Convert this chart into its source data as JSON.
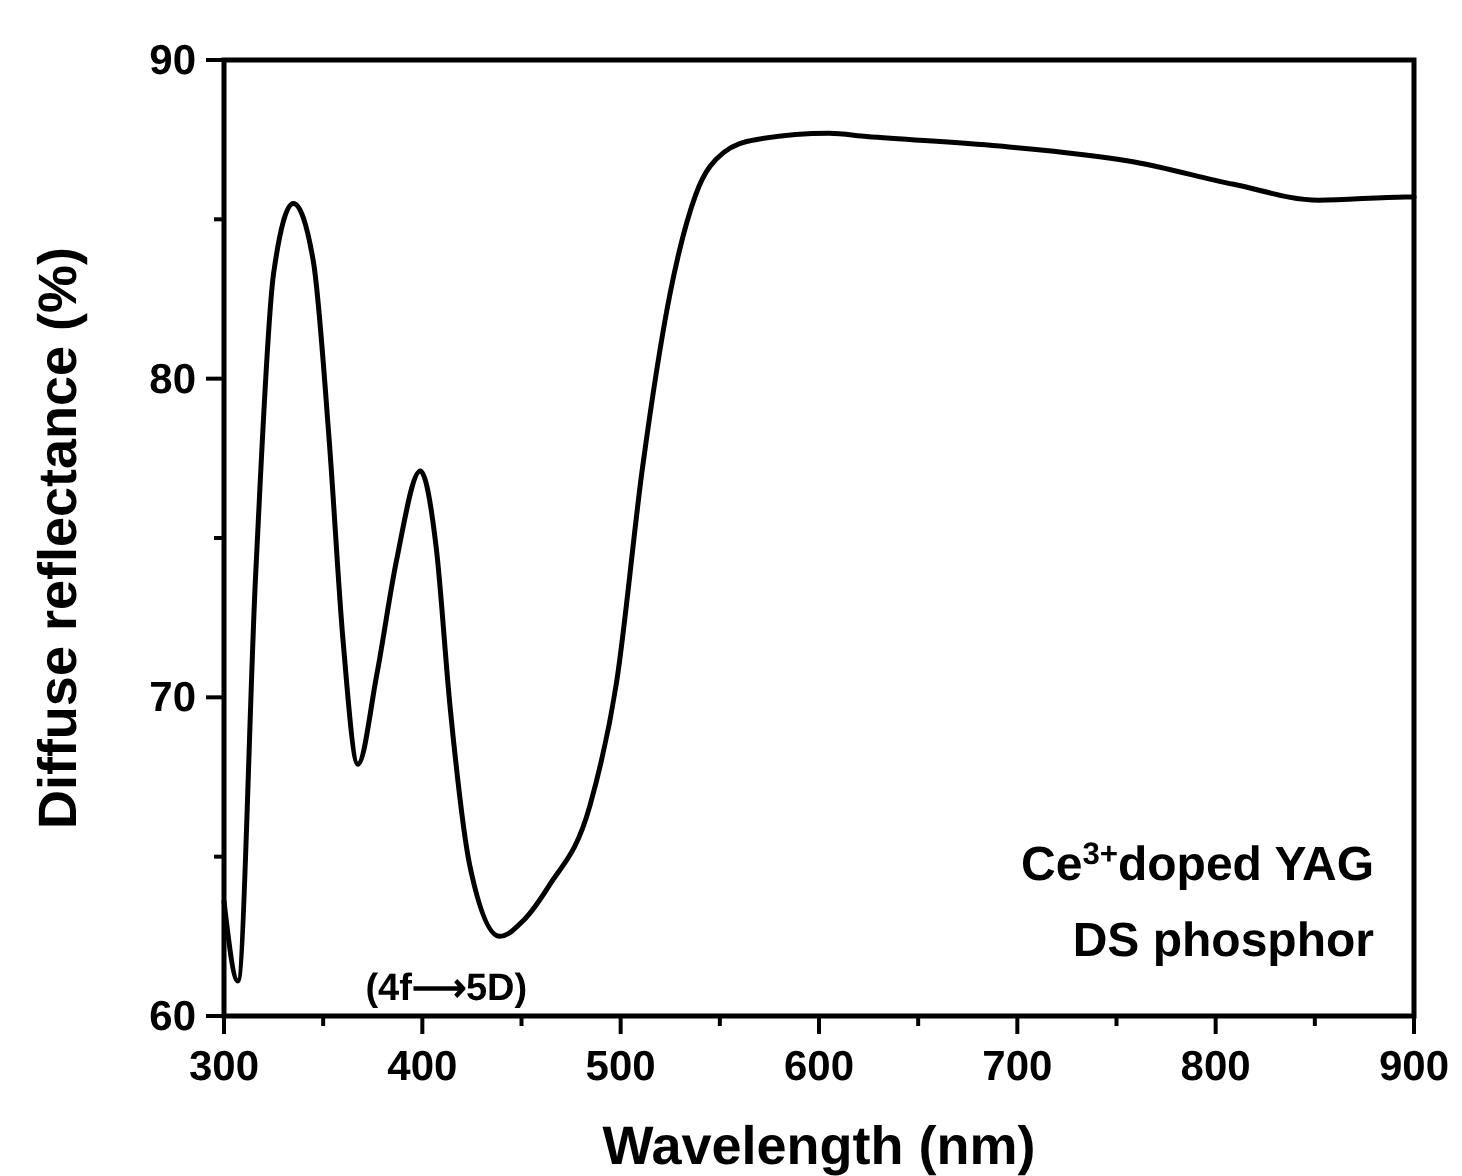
{
  "chart_data": {
    "type": "line",
    "xlabel": "Wavelength (nm)",
    "ylabel": "Diffuse reflectance (%)",
    "xlim": [
      300,
      900
    ],
    "ylim": [
      60,
      90
    ],
    "xticks": [
      300,
      {
        "value": 350,
        "label": null
      },
      400,
      {
        "value": 450,
        "label": null
      },
      500,
      {
        "value": 550,
        "label": null
      },
      600,
      {
        "value": 650,
        "label": null
      },
      700,
      {
        "value": 750,
        "label": null
      },
      800,
      {
        "value": 850,
        "label": null
      },
      900
    ],
    "yticks": [
      60,
      {
        "value": 65,
        "label": null
      },
      70,
      {
        "value": 75,
        "label": null
      },
      80,
      {
        "value": 85,
        "label": null
      },
      90
    ],
    "grid": false,
    "line_style": "solid",
    "annotations": [
      "(4f⟶5D)",
      "Ce$^{3+}$doped YAG",
      "DS phosphor"
    ],
    "series": [
      {
        "color": "#000000",
        "x": [
          300,
          307,
          316,
          325,
          335,
          345,
          353,
          360,
          367.5,
          377,
          387,
          399,
          407,
          414,
          424,
          439,
          451,
          464,
          484.5,
          498,
          511,
          525,
          538,
          552,
          568,
          605,
          624,
          691,
          759,
          809,
          852,
          896,
          900
        ],
        "values": [
          63.6,
          61.1,
          73.9,
          83.3,
          85.5,
          83.7,
          78.1,
          71.8,
          67.9,
          70.7,
          74.3,
          77.1,
          74.7,
          69.7,
          64.7,
          62.5,
          63.0,
          64.1,
          66.6,
          70.5,
          77.2,
          82.7,
          85.8,
          87.1,
          87.5,
          87.7,
          87.6,
          87.3,
          86.8,
          86.1,
          85.6,
          85.7,
          85.7
        ]
      }
    ]
  }
}
